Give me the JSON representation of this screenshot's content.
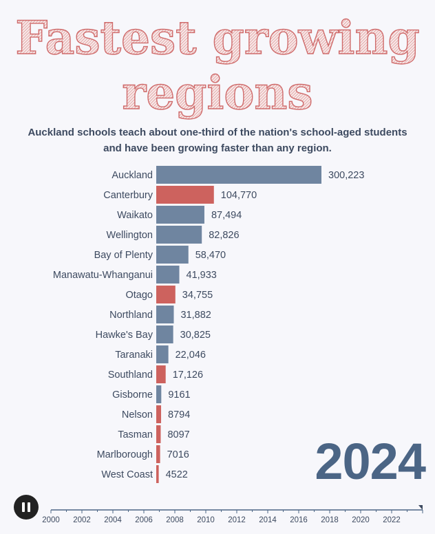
{
  "colors": {
    "blue_bar": "#6f85a0",
    "red_bar": "#cd625e",
    "title_red": "#cf6b6b",
    "text": "#3d4a60",
    "year": "#4b6585"
  },
  "controls": {
    "play_icon": "pause-icon",
    "timeline_ticks": [
      "2000",
      "2002",
      "2004",
      "2006",
      "2008",
      "2010",
      "2012",
      "2014",
      "2016",
      "2018",
      "2020",
      "2022"
    ],
    "timeline_progress": 1.0
  },
  "chart_data": {
    "type": "bar",
    "orientation": "horizontal",
    "title": "Fastest growing regions",
    "title_line1": "Fastest growing",
    "title_line2": "regions",
    "subtitle_line1": "Auckland schools teach about one-third of the nation's school-aged students",
    "subtitle_line2": "and have been growing faster than any region.",
    "year": "2024",
    "categories": [
      "Auckland",
      "Canterbury",
      "Waikato",
      "Wellington",
      "Bay of Plenty",
      "Manawatu-Whanganui",
      "Otago",
      "Northland",
      "Hawke's Bay",
      "Taranaki",
      "Southland",
      "Gisborne",
      "Nelson",
      "Tasman",
      "Marlborough",
      "West Coast"
    ],
    "values": [
      300223,
      104770,
      87494,
      82826,
      58470,
      41933,
      34755,
      31882,
      30825,
      22046,
      17126,
      9161,
      8794,
      8097,
      7016,
      4522
    ],
    "labels": [
      "300,223",
      "104,770",
      "87,494",
      "82,826",
      "58,470",
      "41,933",
      "34,755",
      "31,882",
      "30,825",
      "22,046",
      "17,126",
      "9161",
      "8794",
      "8097",
      "7016",
      "4522"
    ],
    "colors": [
      "blue",
      "red",
      "blue",
      "blue",
      "blue",
      "blue",
      "red",
      "blue",
      "blue",
      "blue",
      "red",
      "blue",
      "red",
      "red",
      "red",
      "red"
    ]
  }
}
